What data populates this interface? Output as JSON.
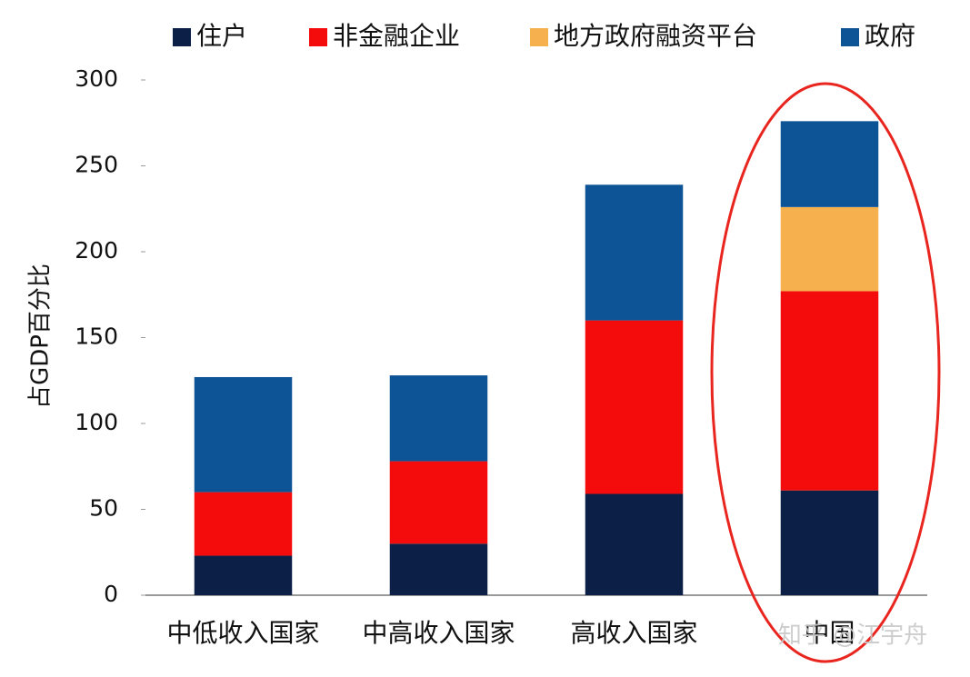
{
  "chart_data": {
    "type": "stacked-bar",
    "y_label": "占GDP百分比",
    "categories": [
      "中低收入国家",
      "中高收入国家",
      "高收入国家",
      "中国"
    ],
    "series": [
      {
        "name": "住户",
        "color": "#0b1f47",
        "values": [
          23,
          30,
          59,
          61
        ]
      },
      {
        "name": "非金融企业",
        "color": "#f40c0c",
        "values": [
          37,
          48,
          101,
          116
        ]
      },
      {
        "name": "地方政府融资平台",
        "color": "#f6b04e",
        "values": [
          null,
          null,
          null,
          49
        ]
      },
      {
        "name": "政府",
        "color": "#0d5496",
        "values": [
          67,
          50,
          79,
          50
        ]
      }
    ],
    "ylim": [
      0,
      300
    ],
    "yticks": [
      0,
      50,
      100,
      150,
      200,
      250,
      300
    ],
    "watermark": "知乎 @江宇舟"
  }
}
